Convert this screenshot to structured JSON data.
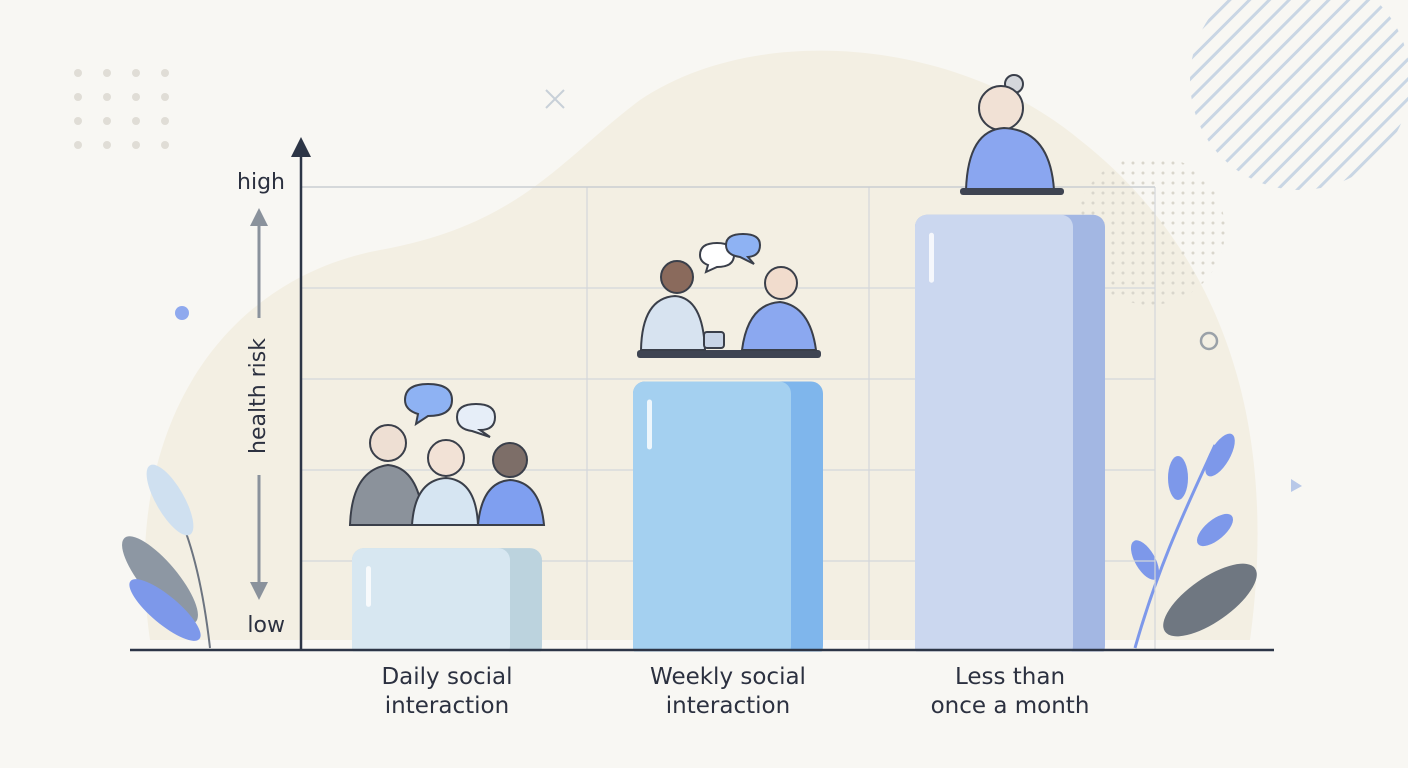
{
  "chart_data": {
    "type": "bar",
    "y_label": "health risk",
    "categories": [
      "Daily social\ninteraction",
      "Weekly social\ninteraction",
      "Less than\nonce a month"
    ],
    "values": [
      0.22,
      0.58,
      0.94
    ],
    "colors": [
      "#d7e7f1",
      "#a4d0f0",
      "#cbd7ef"
    ],
    "side_colors": [
      "#bcd3de",
      "#7fb6ec",
      "#a3b7e3"
    ],
    "ylim": [
      0,
      1
    ],
    "yticks": [
      {
        "value": 0,
        "label": "low"
      },
      {
        "value": 1,
        "label": "high"
      }
    ],
    "grid": true
  }
}
